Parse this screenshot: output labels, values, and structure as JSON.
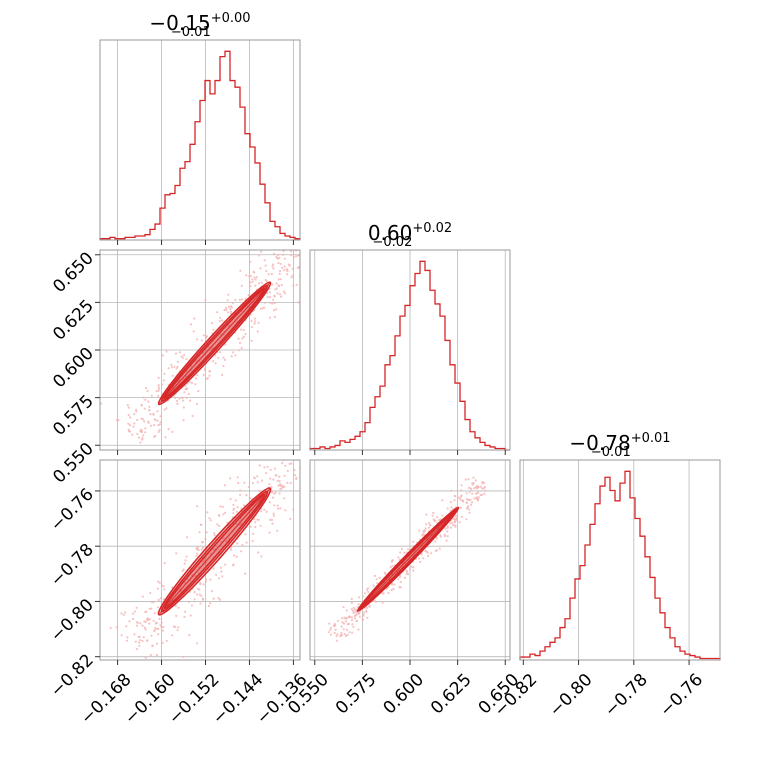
{
  "chart_data": {
    "type": "corner",
    "color": "#d62728",
    "sample_color": "#f4b4b4",
    "grid": true,
    "parameters": [
      {
        "title": {
          "value": "−0.15",
          "plus": "+0.00",
          "minus": "−0.01"
        },
        "range": [
          -0.1712,
          -0.1348
        ],
        "ticks": [
          -0.168,
          -0.16,
          -0.152,
          -0.144,
          -0.136
        ],
        "tick_labels": [
          "−0.168",
          "−0.160",
          "−0.152",
          "−0.144",
          "−0.136"
        ],
        "hist": [
          1,
          1,
          2,
          1,
          1,
          2,
          2,
          3,
          3,
          4,
          8,
          12,
          24,
          34,
          35,
          41,
          54,
          59,
          72,
          89,
          105,
          120,
          110,
          120,
          138,
          142,
          120,
          115,
          100,
          80,
          70,
          58,
          42,
          28,
          14,
          10,
          5,
          3,
          2,
          1
        ]
      },
      {
        "title": {
          "value": "0.60",
          "plus": "+0.02",
          "minus": "−0.02"
        },
        "range": [
          0.5475,
          0.6525
        ],
        "ticks": [
          0.55,
          0.575,
          0.6,
          0.625,
          0.65
        ],
        "tick_labels": [
          "0.550",
          "0.575",
          "0.600",
          "0.625",
          "0.650"
        ],
        "hist": [
          1,
          1,
          2,
          1,
          2,
          3,
          6,
          5,
          7,
          9,
          12,
          18,
          28,
          35,
          42,
          56,
          62,
          75,
          88,
          95,
          108,
          116,
          124,
          118,
          105,
          96,
          88,
          72,
          56,
          44,
          32,
          20,
          12,
          8,
          5,
          3,
          2,
          1,
          1,
          0
        ]
      },
      {
        "title": {
          "value": "−0.78",
          "plus": "+0.01",
          "minus": "−0.01"
        },
        "range": [
          -0.8212,
          -0.7488
        ],
        "ticks": [
          -0.82,
          -0.8,
          -0.78,
          -0.76
        ],
        "tick_labels": [
          "−0.82",
          "−0.80",
          "−0.78",
          "−0.76"
        ],
        "hist": [
          2,
          2,
          4,
          3,
          6,
          9,
          12,
          15,
          22,
          28,
          42,
          55,
          64,
          78,
          92,
          106,
          118,
          124,
          115,
          108,
          120,
          128,
          110,
          96,
          84,
          70,
          56,
          42,
          32,
          22,
          15,
          9,
          6,
          4,
          3,
          2,
          1,
          1,
          1,
          1
        ]
      }
    ],
    "pairs": [
      {
        "x": 0,
        "y": 1,
        "ridge": [
          [
            -0.1605,
            0.5715
          ],
          [
            -0.1402,
            0.6355
          ]
        ],
        "contour_widths": [
          0.0024,
          0.0042,
          0.0062
        ]
      },
      {
        "x": 0,
        "y": 2,
        "ridge": [
          [
            -0.1605,
            -0.8048
          ],
          [
            -0.1402,
            -0.759
          ]
        ],
        "contour_widths": [
          0.002,
          0.0035,
          0.0052
        ]
      },
      {
        "x": 1,
        "y": 2,
        "ridge": [
          [
            0.5725,
            -0.8035
          ],
          [
            0.6255,
            -0.766
          ]
        ],
        "contour_widths": [
          0.0008,
          0.0014,
          0.0022
        ]
      }
    ]
  }
}
